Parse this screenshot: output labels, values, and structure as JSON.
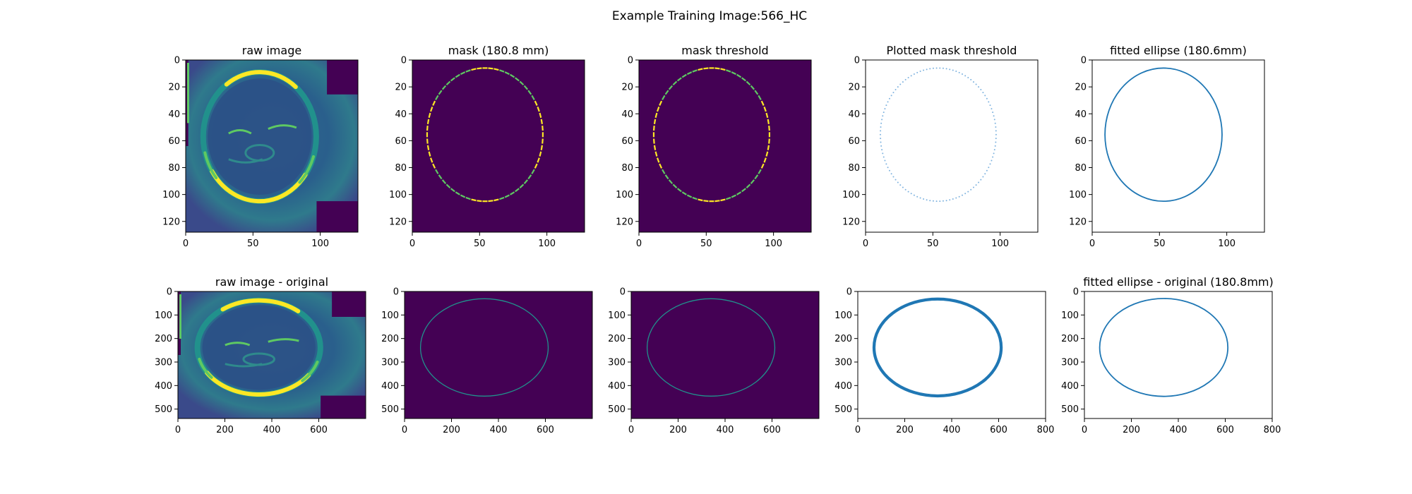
{
  "figure": {
    "title": "Example Training Image:566_HC"
  },
  "colors": {
    "viridis_dark": "#440154",
    "viridis_teal": "#21918c",
    "viridis_green": "#5ec962",
    "viridis_yellow": "#fde725",
    "line_blue": "#1f77b4",
    "dot_blue": "#7fb3df"
  },
  "chart_data": [
    {
      "id": "raw-image",
      "type": "heatmap",
      "title": "raw image",
      "xlim": [
        0,
        128
      ],
      "ylim": [
        128,
        0
      ],
      "xticks": [
        0,
        50,
        100
      ],
      "yticks": [
        0,
        20,
        40,
        60,
        80,
        100,
        120
      ],
      "content": "ultrasound",
      "ellipse": {
        "cx": 55,
        "cy": 57,
        "rx": 42,
        "ry": 48
      }
    },
    {
      "id": "mask",
      "type": "heatmap",
      "title": "mask (180.8 mm)",
      "xlim": [
        0,
        128
      ],
      "ylim": [
        128,
        0
      ],
      "xticks": [
        0,
        50,
        100
      ],
      "yticks": [
        0,
        20,
        40,
        60,
        80,
        100,
        120
      ],
      "content": "dashed-ellipse-on-dark",
      "ellipse": {
        "cx": 54,
        "cy": 55.5,
        "rx": 43,
        "ry": 49.5
      }
    },
    {
      "id": "mask-threshold",
      "type": "heatmap",
      "title": "mask threshold",
      "xlim": [
        0,
        128
      ],
      "ylim": [
        128,
        0
      ],
      "xticks": [
        0,
        50,
        100
      ],
      "yticks": [
        0,
        20,
        40,
        60,
        80,
        100,
        120
      ],
      "content": "dashed-ellipse-on-dark",
      "ellipse": {
        "cx": 54,
        "cy": 55.5,
        "rx": 43,
        "ry": 49.5
      }
    },
    {
      "id": "plotted-mask-threshold",
      "type": "scatter",
      "title": "Plotted mask threshold",
      "xlim": [
        0,
        128
      ],
      "ylim": [
        128,
        0
      ],
      "xticks": [
        0,
        50,
        100
      ],
      "yticks": [
        0,
        20,
        40,
        60,
        80,
        100,
        120
      ],
      "content": "dotted-ellipse",
      "ellipse": {
        "cx": 54,
        "cy": 55.5,
        "rx": 43,
        "ry": 49.5
      }
    },
    {
      "id": "fitted-ellipse",
      "type": "line",
      "title": "fitted ellipse (180.6mm)",
      "xlim": [
        0,
        128
      ],
      "ylim": [
        128,
        0
      ],
      "xticks": [
        0,
        50,
        100
      ],
      "yticks": [
        0,
        20,
        40,
        60,
        80,
        100,
        120
      ],
      "content": "ellipse-line",
      "ellipse": {
        "cx": 53,
        "cy": 55.5,
        "rx": 43.5,
        "ry": 49.5
      }
    },
    {
      "id": "raw-image-original",
      "type": "heatmap",
      "title": "raw image - original",
      "xlim": [
        0,
        800
      ],
      "ylim": [
        540,
        0
      ],
      "xticks": [
        0,
        200,
        400,
        600
      ],
      "yticks": [
        0,
        100,
        200,
        300,
        400,
        500
      ],
      "content": "ultrasound",
      "ellipse": {
        "cx": 345,
        "cy": 238,
        "rx": 262,
        "ry": 200
      }
    },
    {
      "id": "mask-original",
      "type": "heatmap",
      "title": "",
      "xlim": [
        0,
        800
      ],
      "ylim": [
        540,
        0
      ],
      "xticks": [
        0,
        200,
        400,
        600
      ],
      "yticks": [
        0,
        100,
        200,
        300,
        400,
        500
      ],
      "content": "thin-ellipse-on-dark",
      "ellipse": {
        "cx": 340,
        "cy": 238,
        "rx": 272,
        "ry": 207
      }
    },
    {
      "id": "mask-threshold-original",
      "type": "heatmap",
      "title": "",
      "xlim": [
        0,
        800
      ],
      "ylim": [
        540,
        0
      ],
      "xticks": [
        0,
        200,
        400,
        600
      ],
      "yticks": [
        0,
        100,
        200,
        300,
        400,
        500
      ],
      "content": "thin-ellipse-on-dark",
      "ellipse": {
        "cx": 340,
        "cy": 238,
        "rx": 272,
        "ry": 207
      }
    },
    {
      "id": "plotted-mask-threshold-original",
      "type": "scatter",
      "title": "",
      "xlim": [
        0,
        800
      ],
      "ylim": [
        540,
        0
      ],
      "xticks": [
        0,
        200,
        400,
        600,
        800
      ],
      "yticks": [
        0,
        100,
        200,
        300,
        400,
        500
      ],
      "content": "thick-ellipse",
      "ellipse": {
        "cx": 340,
        "cy": 238,
        "rx": 272,
        "ry": 207
      }
    },
    {
      "id": "fitted-ellipse-original",
      "type": "line",
      "title": "fitted ellipse - original (180.8mm)",
      "xlim": [
        0,
        800
      ],
      "ylim": [
        540,
        0
      ],
      "xticks": [
        0,
        200,
        400,
        600,
        800
      ],
      "yticks": [
        0,
        100,
        200,
        300,
        400,
        500
      ],
      "content": "ellipse-line",
      "ellipse": {
        "cx": 338,
        "cy": 238,
        "rx": 273,
        "ry": 208
      }
    }
  ]
}
